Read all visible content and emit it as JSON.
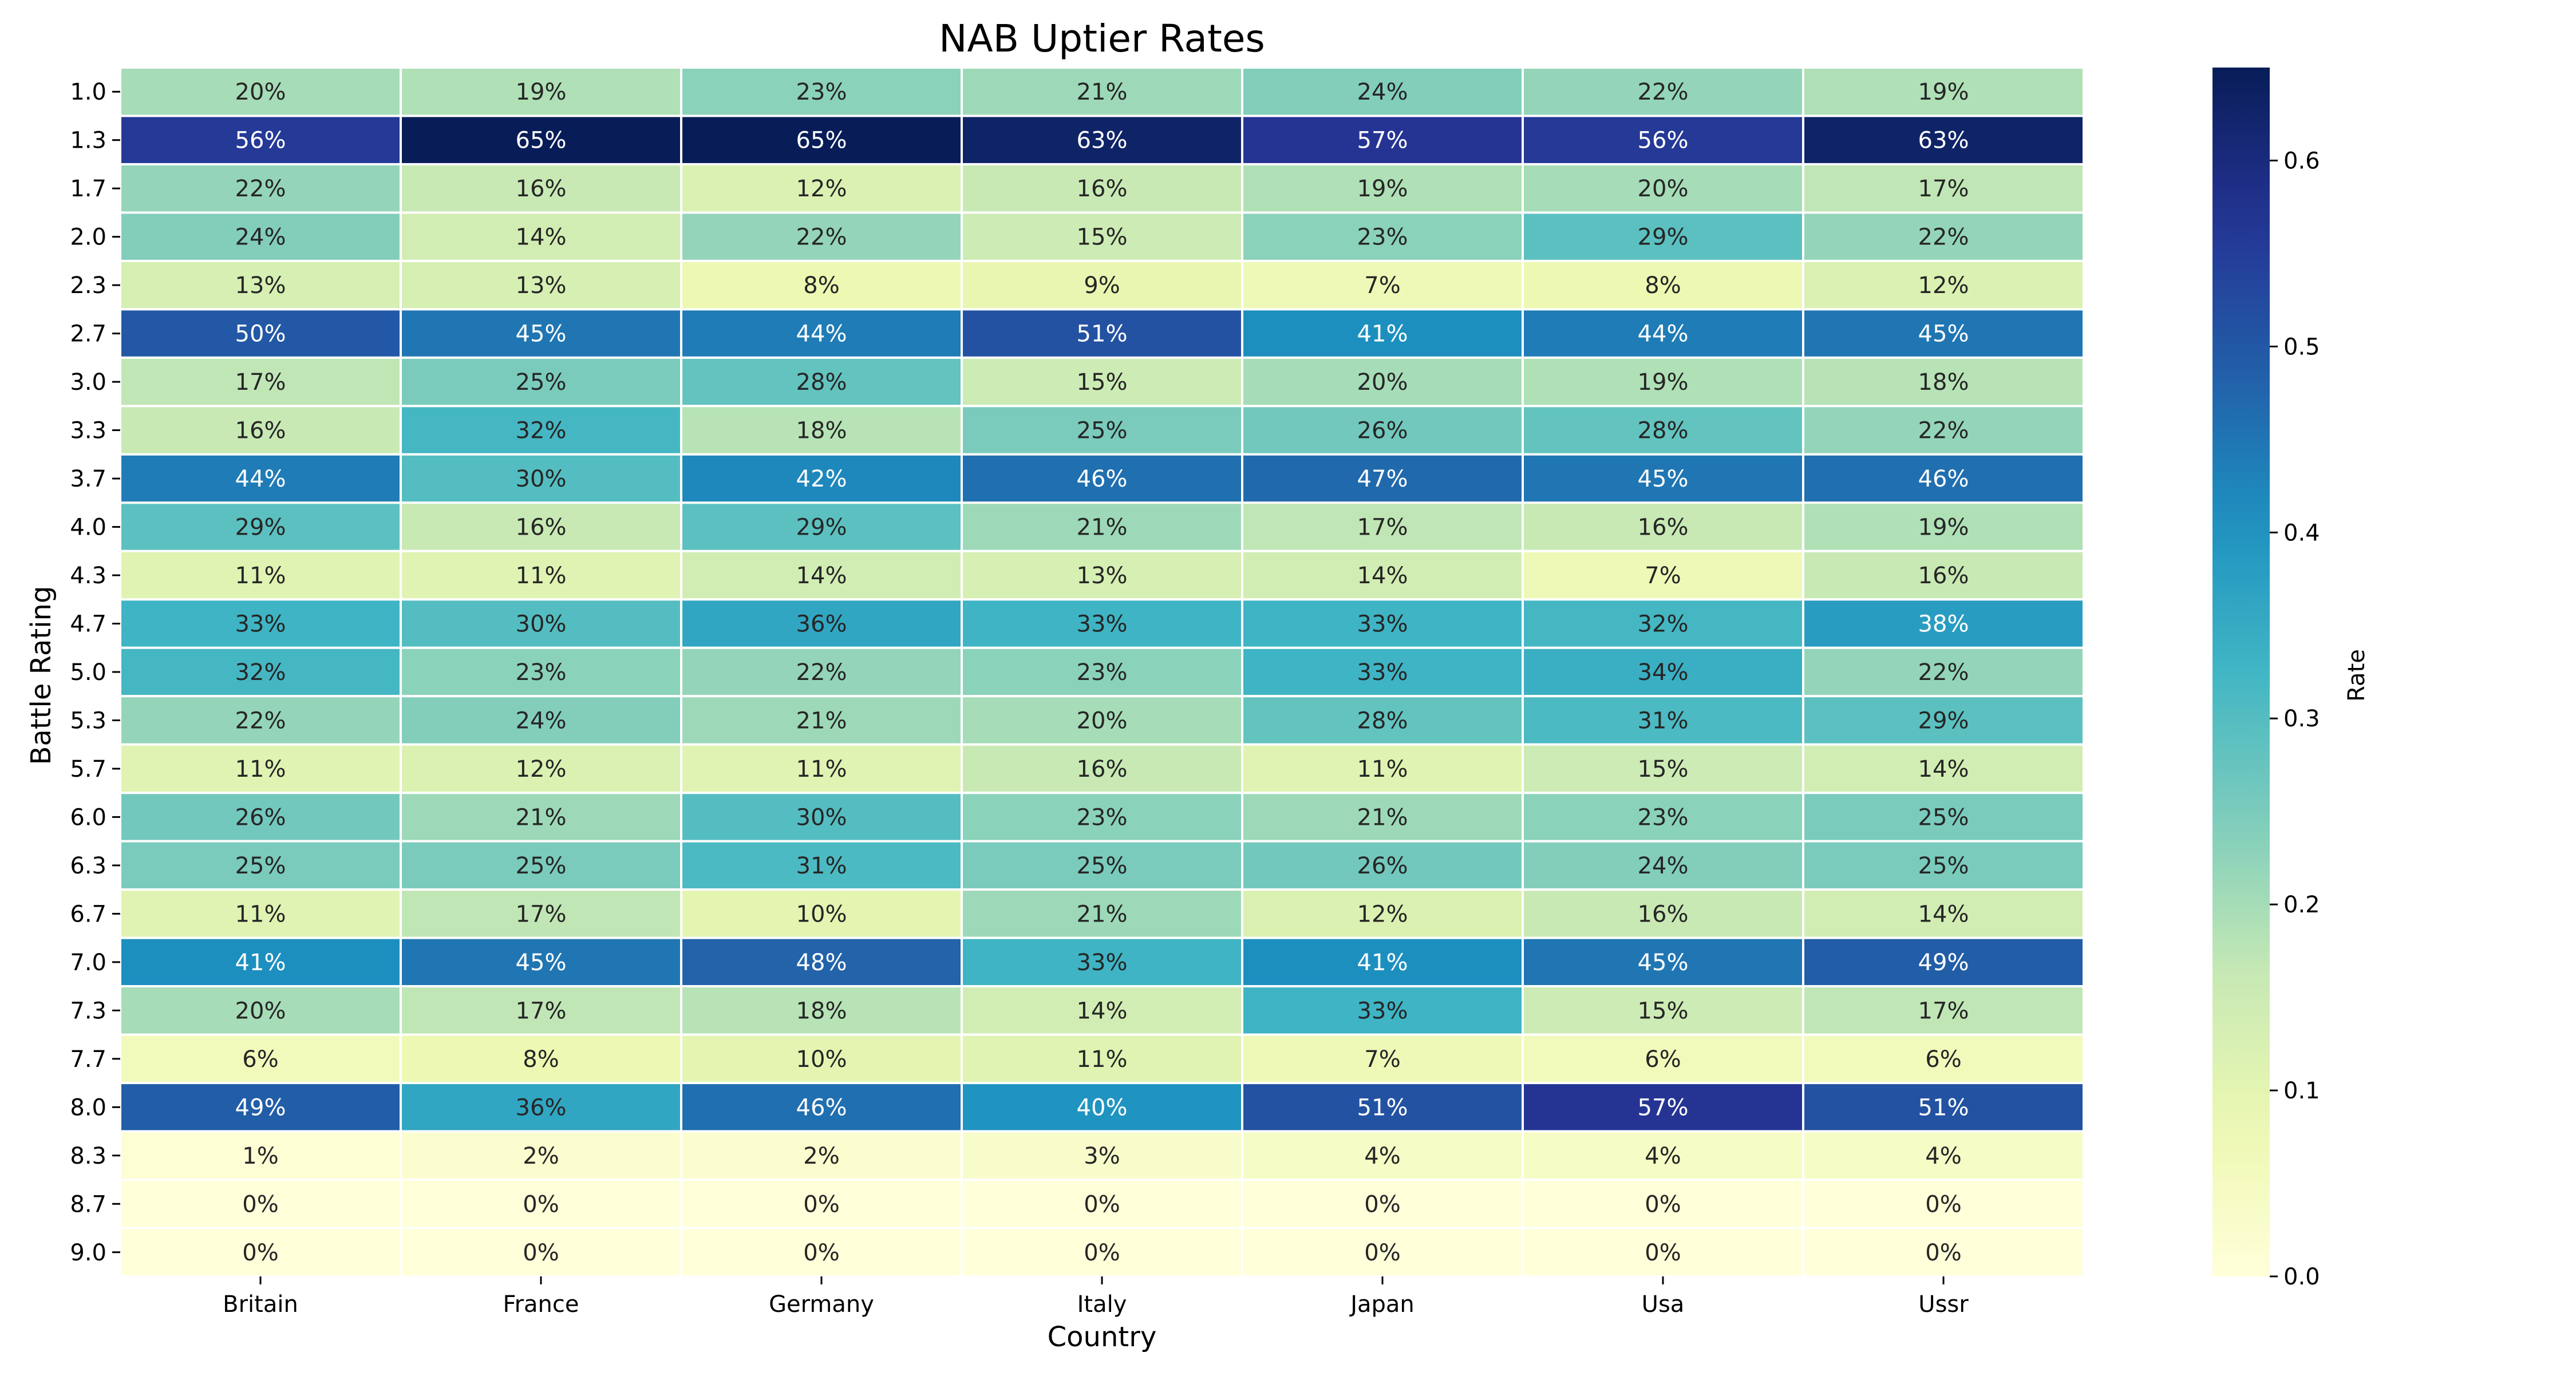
{
  "chart_data": {
    "type": "heatmap",
    "title": "NAB Uptier Rates",
    "xlabel": "Country",
    "ylabel": "Battle Rating",
    "colorbar_label": "Rate",
    "colormap": "YlGnBu",
    "value_range": [
      0.0,
      0.65
    ],
    "colorbar_ticks": [
      "0.0",
      "0.1",
      "0.2",
      "0.3",
      "0.4",
      "0.5",
      "0.6"
    ],
    "colorbar_tick_values": [
      0.0,
      0.1,
      0.2,
      0.3,
      0.4,
      0.5,
      0.6
    ],
    "x_categories": [
      "Britain",
      "France",
      "Germany",
      "Italy",
      "Japan",
      "Usa",
      "Ussr"
    ],
    "y_categories": [
      "1.0",
      "1.3",
      "1.7",
      "2.0",
      "2.3",
      "2.7",
      "3.0",
      "3.3",
      "3.7",
      "4.0",
      "4.3",
      "4.7",
      "5.0",
      "5.3",
      "5.7",
      "6.0",
      "6.3",
      "6.7",
      "7.0",
      "7.3",
      "7.7",
      "8.0",
      "8.3",
      "8.7",
      "9.0"
    ],
    "values": [
      [
        0.2,
        0.19,
        0.23,
        0.21,
        0.24,
        0.22,
        0.19
      ],
      [
        0.56,
        0.65,
        0.65,
        0.63,
        0.57,
        0.56,
        0.63
      ],
      [
        0.22,
        0.16,
        0.12,
        0.16,
        0.19,
        0.2,
        0.17
      ],
      [
        0.24,
        0.14,
        0.22,
        0.15,
        0.23,
        0.29,
        0.22
      ],
      [
        0.13,
        0.13,
        0.08,
        0.09,
        0.07,
        0.08,
        0.12
      ],
      [
        0.5,
        0.45,
        0.44,
        0.51,
        0.41,
        0.44,
        0.45
      ],
      [
        0.17,
        0.25,
        0.28,
        0.15,
        0.2,
        0.19,
        0.18
      ],
      [
        0.16,
        0.32,
        0.18,
        0.25,
        0.26,
        0.28,
        0.22
      ],
      [
        0.44,
        0.3,
        0.42,
        0.46,
        0.47,
        0.45,
        0.46
      ],
      [
        0.29,
        0.16,
        0.29,
        0.21,
        0.17,
        0.16,
        0.19
      ],
      [
        0.11,
        0.11,
        0.14,
        0.13,
        0.14,
        0.07,
        0.16
      ],
      [
        0.33,
        0.3,
        0.36,
        0.33,
        0.33,
        0.32,
        0.38
      ],
      [
        0.32,
        0.23,
        0.22,
        0.23,
        0.33,
        0.34,
        0.22
      ],
      [
        0.22,
        0.24,
        0.21,
        0.2,
        0.28,
        0.31,
        0.29
      ],
      [
        0.11,
        0.12,
        0.11,
        0.16,
        0.11,
        0.15,
        0.14
      ],
      [
        0.26,
        0.21,
        0.3,
        0.23,
        0.21,
        0.23,
        0.25
      ],
      [
        0.25,
        0.25,
        0.31,
        0.25,
        0.26,
        0.24,
        0.25
      ],
      [
        0.11,
        0.17,
        0.1,
        0.21,
        0.12,
        0.16,
        0.14
      ],
      [
        0.41,
        0.45,
        0.48,
        0.33,
        0.41,
        0.45,
        0.49
      ],
      [
        0.2,
        0.17,
        0.18,
        0.14,
        0.33,
        0.15,
        0.17
      ],
      [
        0.06,
        0.08,
        0.1,
        0.11,
        0.07,
        0.06,
        0.06
      ],
      [
        0.49,
        0.36,
        0.46,
        0.4,
        0.51,
        0.57,
        0.51
      ],
      [
        0.01,
        0.02,
        0.02,
        0.03,
        0.04,
        0.04,
        0.04
      ],
      [
        0.0,
        0.0,
        0.0,
        0.0,
        0.0,
        0.0,
        0.0
      ],
      [
        0.0,
        0.0,
        0.0,
        0.0,
        0.0,
        0.0,
        0.0
      ]
    ],
    "cell_labels": [
      [
        "20%",
        "19%",
        "23%",
        "21%",
        "24%",
        "22%",
        "19%"
      ],
      [
        "56%",
        "65%",
        "65%",
        "63%",
        "57%",
        "56%",
        "63%"
      ],
      [
        "22%",
        "16%",
        "12%",
        "16%",
        "19%",
        "20%",
        "17%"
      ],
      [
        "24%",
        "14%",
        "22%",
        "15%",
        "23%",
        "29%",
        "22%"
      ],
      [
        "13%",
        "13%",
        "8%",
        "9%",
        "7%",
        "8%",
        "12%"
      ],
      [
        "50%",
        "45%",
        "44%",
        "51%",
        "41%",
        "44%",
        "45%"
      ],
      [
        "17%",
        "25%",
        "28%",
        "15%",
        "20%",
        "19%",
        "18%"
      ],
      [
        "16%",
        "32%",
        "18%",
        "25%",
        "26%",
        "28%",
        "22%"
      ],
      [
        "44%",
        "30%",
        "42%",
        "46%",
        "47%",
        "45%",
        "46%"
      ],
      [
        "29%",
        "16%",
        "29%",
        "21%",
        "17%",
        "16%",
        "19%"
      ],
      [
        "11%",
        "11%",
        "14%",
        "13%",
        "14%",
        "7%",
        "16%"
      ],
      [
        "33%",
        "30%",
        "36%",
        "33%",
        "33%",
        "32%",
        "38%"
      ],
      [
        "32%",
        "23%",
        "22%",
        "23%",
        "33%",
        "34%",
        "22%"
      ],
      [
        "22%",
        "24%",
        "21%",
        "20%",
        "28%",
        "31%",
        "29%"
      ],
      [
        "11%",
        "12%",
        "11%",
        "16%",
        "11%",
        "15%",
        "14%"
      ],
      [
        "26%",
        "21%",
        "30%",
        "23%",
        "21%",
        "23%",
        "25%"
      ],
      [
        "25%",
        "25%",
        "31%",
        "25%",
        "26%",
        "24%",
        "25%"
      ],
      [
        "11%",
        "17%",
        "10%",
        "21%",
        "12%",
        "16%",
        "14%"
      ],
      [
        "41%",
        "45%",
        "48%",
        "33%",
        "41%",
        "45%",
        "49%"
      ],
      [
        "20%",
        "17%",
        "18%",
        "14%",
        "33%",
        "15%",
        "17%"
      ],
      [
        "6%",
        "8%",
        "10%",
        "11%",
        "7%",
        "6%",
        "6%"
      ],
      [
        "49%",
        "36%",
        "46%",
        "40%",
        "51%",
        "57%",
        "51%"
      ],
      [
        "1%",
        "2%",
        "2%",
        "3%",
        "4%",
        "4%",
        "4%"
      ],
      [
        "0%",
        "0%",
        "0%",
        "0%",
        "0%",
        "0%",
        "0%"
      ],
      [
        "0%",
        "0%",
        "0%",
        "0%",
        "0%",
        "0%",
        "0%"
      ]
    ]
  }
}
